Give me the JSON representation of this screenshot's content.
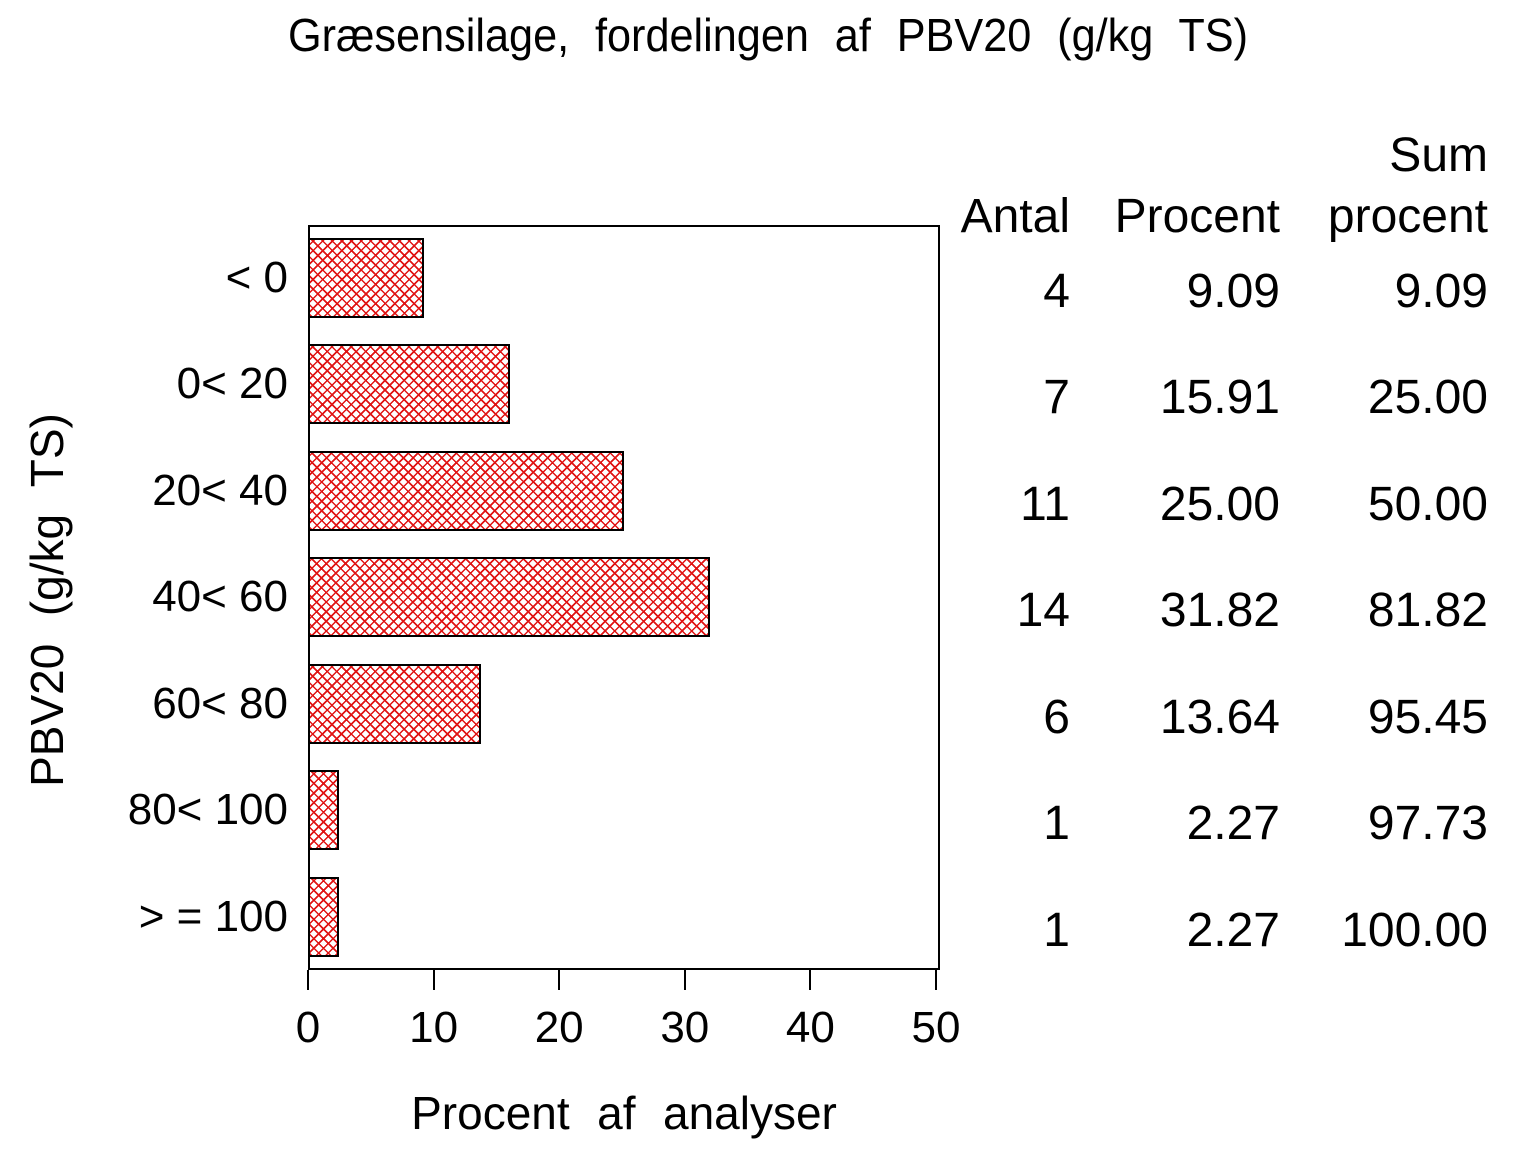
{
  "title": "Græsensilage, fordelingen af PBV20 (g/kg TS)",
  "colors": {
    "hatch_red": "#e01414",
    "axis_black": "#000000",
    "background": "#ffffff"
  },
  "chart_data": {
    "type": "bar",
    "orientation": "horizontal",
    "title": "Græsensilage, fordelingen af PBV20 (g/kg TS)",
    "xlabel": "Procent af analyser",
    "ylabel": "PBV20 (g/kg TS)",
    "xlim": [
      0,
      50
    ],
    "grid": false,
    "x_ticks": [
      "0",
      "10",
      "20",
      "30",
      "40",
      "50"
    ],
    "categories": [
      "< 0",
      "0< 20",
      "20< 40",
      "40< 60",
      "60< 80",
      "80< 100",
      "> = 100"
    ],
    "values": [
      9.09,
      15.91,
      25.0,
      31.82,
      13.64,
      2.27,
      2.27
    ],
    "counts": [
      4,
      7,
      11,
      14,
      6,
      1,
      1
    ],
    "cum_percent": [
      9.09,
      25.0,
      50.0,
      81.82,
      95.45,
      97.73,
      100.0
    ],
    "bar_style": "red diagonal cross-hatch, black outline",
    "table": {
      "header_line1_sum": "Sum",
      "header_antal": "Antal",
      "header_procent": "Procent",
      "header_sum_procent": "procent",
      "rows": [
        {
          "antal": "4",
          "procent": "9.09",
          "sum": "9.09"
        },
        {
          "antal": "7",
          "procent": "15.91",
          "sum": "25.00"
        },
        {
          "antal": "11",
          "procent": "25.00",
          "sum": "50.00"
        },
        {
          "antal": "14",
          "procent": "31.82",
          "sum": "81.82"
        },
        {
          "antal": "6",
          "procent": "13.64",
          "sum": "95.45"
        },
        {
          "antal": "1",
          "procent": "2.27",
          "sum": "97.73"
        },
        {
          "antal": "1",
          "procent": "2.27",
          "sum": "100.00"
        }
      ]
    }
  }
}
